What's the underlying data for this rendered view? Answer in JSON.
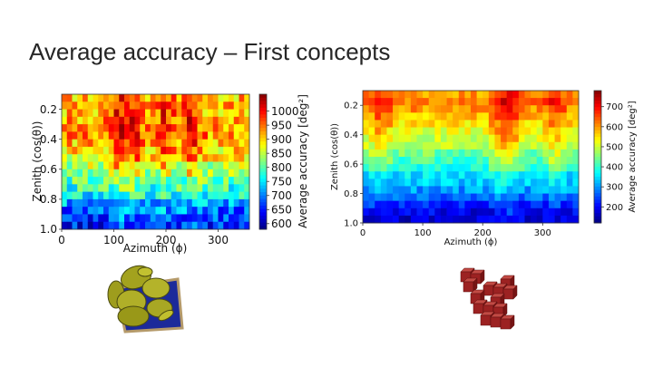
{
  "slide": {
    "title": "Average accuracy – First concepts"
  },
  "chart_data": [
    {
      "type": "heatmap",
      "title": "",
      "xlabel": "Azimuth (ϕ)",
      "ylabel": "Zenith (cos(θ))",
      "colorbar_label": "Average accuracy [deg²]",
      "xlim": [
        0,
        360
      ],
      "ylim": [
        0.1,
        1.0
      ],
      "x_ticks": [
        "0",
        "100",
        "200",
        "300"
      ],
      "y_ticks": [
        "0.2",
        "0.4",
        "0.6",
        "0.8",
        "1.0"
      ],
      "colorbar_ticks": [
        "600",
        "650",
        "700",
        "750",
        "800",
        "850",
        "900",
        "950",
        "1000"
      ],
      "clim": [
        580,
        1060
      ],
      "columns": 36,
      "zenith_rows": [
        0.1,
        0.15,
        0.2,
        0.25,
        0.3,
        0.35,
        0.4,
        0.45,
        0.5,
        0.55,
        0.6,
        0.65,
        0.7,
        0.75,
        0.8,
        0.85,
        0.9,
        0.95
      ],
      "row_mean": [
        910,
        915,
        915,
        925,
        925,
        930,
        910,
        900,
        880,
        850,
        820,
        800,
        780,
        750,
        720,
        690,
        670,
        650
      ],
      "azimuth_peaks_deg": [
        110,
        140,
        200,
        250
      ],
      "noise": 60
    },
    {
      "type": "heatmap",
      "title": "",
      "xlabel": "Azimuth (ϕ)",
      "ylabel": "Zenith (cos(θ))",
      "colorbar_label": "Average accuracy [deg²]",
      "xlim": [
        0,
        360
      ],
      "ylim": [
        0.1,
        1.0
      ],
      "x_ticks": [
        "0",
        "100",
        "200",
        "300"
      ],
      "y_ticks": [
        "0.2",
        "0.4",
        "0.6",
        "0.8",
        "1.0"
      ],
      "colorbar_ticks": [
        "200",
        "300",
        "400",
        "500",
        "600",
        "700"
      ],
      "clim": [
        120,
        780
      ],
      "columns": 36,
      "zenith_rows": [
        0.1,
        0.15,
        0.2,
        0.25,
        0.3,
        0.35,
        0.4,
        0.45,
        0.5,
        0.55,
        0.6,
        0.65,
        0.7,
        0.75,
        0.8,
        0.85,
        0.9,
        0.95
      ],
      "row_mean": [
        600,
        620,
        600,
        570,
        550,
        520,
        500,
        480,
        440,
        410,
        380,
        350,
        330,
        300,
        260,
        220,
        190,
        170
      ],
      "azimuth_peaks_deg": [
        30,
        230,
        250,
        320
      ],
      "noise": 40
    }
  ],
  "images": [
    {
      "icon": "ellipsoid-cluster-icon"
    },
    {
      "icon": "voxel-cube-cluster-icon"
    }
  ]
}
